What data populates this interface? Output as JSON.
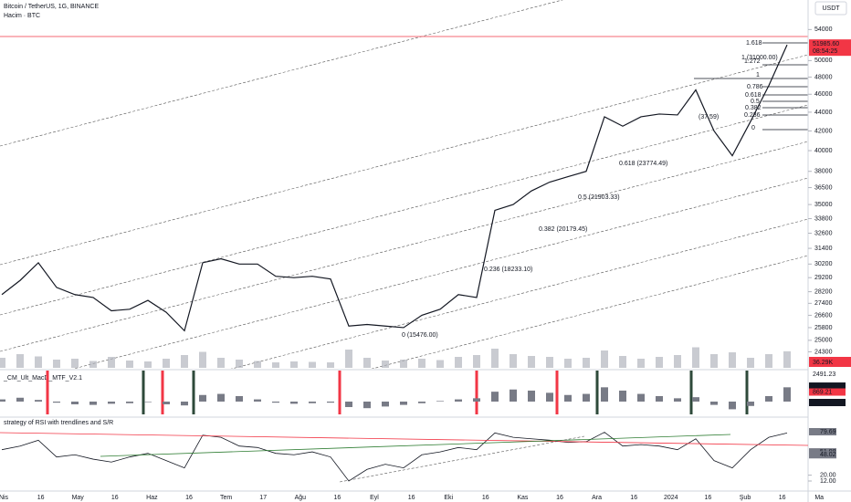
{
  "header": {
    "symbol": "Bitcoin / TetherUS, 1G, BINANCE",
    "volume_label": "Hacim · BTC",
    "currency": "USDT"
  },
  "price_pane": {
    "type": "line",
    "log_scale": true,
    "color": "#131722",
    "ylim": [
      23300,
      58100
    ],
    "yticks": [
      54000,
      50000,
      48000,
      46000,
      44000,
      42000,
      40000,
      38000,
      36500,
      35000,
      33800,
      32600,
      31400,
      30200,
      29200,
      28200,
      27400,
      26600,
      25800,
      25000,
      24300
    ],
    "values": [
      28000,
      29000,
      30300,
      28500,
      28000,
      27800,
      26900,
      27000,
      27600,
      26800,
      25600,
      30300,
      30600,
      30200,
      30200,
      29300,
      29200,
      29300,
      29100,
      25900,
      26000,
      25900,
      25800,
      26600,
      27000,
      28000,
      27800,
      34500,
      35000,
      36200,
      37000,
      37500,
      38000,
      43500,
      42500,
      43500,
      43800,
      43700,
      46500,
      42000,
      39500,
      43000,
      47000,
      51985.6
    ],
    "last_price": {
      "value": 51985.6,
      "label": "51985.60"
    },
    "countdown": "08:54:25",
    "fib_small": [
      "1.618",
      "1 (31000.00)",
      "1.272",
      "1",
      "0.786",
      "0.618",
      "0.5",
      "0.382",
      "0.236",
      "(37.59)",
      "0"
    ],
    "fib_main": [
      "0.618 (23774.49)",
      "0.5 (21903.33)",
      "0.382 (20179.45)",
      "0.236 (18233.10)",
      "0 (15476.00)"
    ]
  },
  "volume": {
    "ylim": [
      0,
      80
    ],
    "color": "#b2b5be",
    "values": [
      22,
      30,
      25,
      18,
      20,
      15,
      24,
      16,
      14,
      20,
      28,
      35,
      22,
      18,
      15,
      12,
      14,
      13,
      12,
      40,
      22,
      16,
      18,
      20,
      17,
      24,
      28,
      42,
      30,
      26,
      24,
      20,
      22,
      38,
      26,
      20,
      24,
      28,
      45,
      30,
      34,
      22,
      30,
      36.29
    ],
    "last": {
      "value": 36290,
      "label": "36.29K"
    }
  },
  "macd": {
    "title": "_CM_Ult_MacD_MTF_V2.1",
    "ylim": [
      -1249,
      2907
    ],
    "color": "#787b86",
    "yticks": [
      2491.23,
      1407.57,
      1093.66,
      869.21,
      -85.34
    ],
    "values": [
      200,
      350,
      150,
      -100,
      -250,
      -300,
      -200,
      -150,
      -50,
      -250,
      -350,
      600,
      700,
      500,
      200,
      -100,
      -200,
      -150,
      -100,
      -500,
      -600,
      -450,
      -300,
      -150,
      50,
      200,
      300,
      900,
      1100,
      1000,
      800,
      600,
      700,
      1300,
      1000,
      700,
      500,
      300,
      400,
      -300,
      -700,
      -400,
      500,
      1300
    ]
  },
  "rsi": {
    "title": "strategy of RSI with trendlines and S/R",
    "ylim": [
      -1.8,
      98.5
    ],
    "color": "#131722",
    "yticks": [
      79.69,
      51.98,
      48.02,
      {
        "value": 20,
        "label": "20.00"
      },
      {
        "value": 12,
        "label": "12.00"
      }
    ],
    "values": [
      55,
      60,
      68,
      45,
      48,
      42,
      38,
      45,
      50,
      40,
      30,
      75,
      72,
      60,
      58,
      50,
      48,
      52,
      45,
      12,
      28,
      35,
      30,
      48,
      52,
      58,
      55,
      78,
      72,
      70,
      68,
      65,
      66,
      79,
      60,
      62,
      60,
      55,
      70,
      40,
      30,
      55,
      72,
      78
    ]
  },
  "time_axis": [
    "Nis",
    "16",
    "May",
    "16",
    "Haz",
    "16",
    "Tem",
    "17",
    "Ağu",
    "16",
    "Eyl",
    "16",
    "Eki",
    "16",
    "Kas",
    "16",
    "Ara",
    "16",
    "2024",
    "16",
    "Şub",
    "16",
    "Ma"
  ]
}
